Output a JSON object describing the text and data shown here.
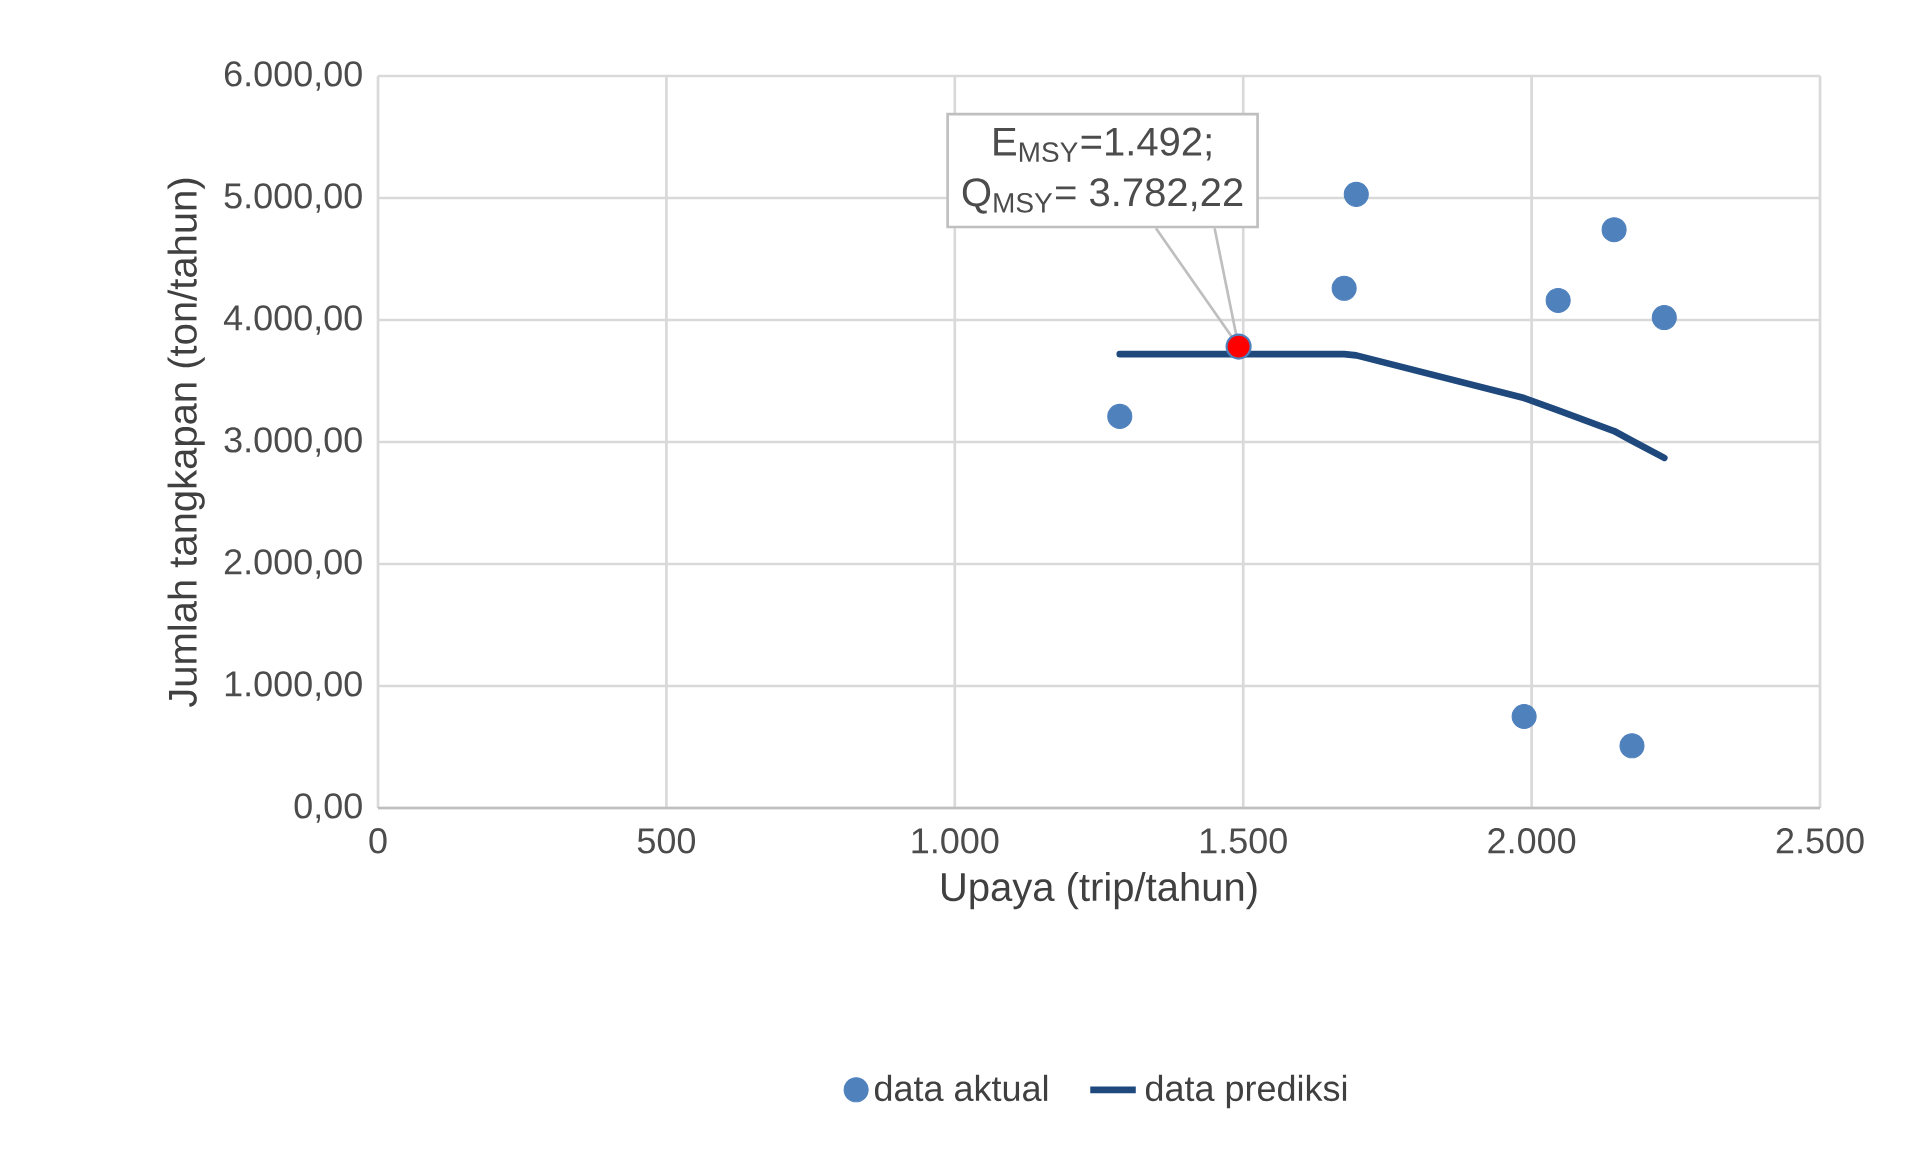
{
  "chart_data": {
    "type": "scatter",
    "xlabel": "Upaya (trip/tahun)",
    "ylabel": "Jumlah tangkapan (ton/tahun)",
    "xlim": [
      0,
      2500
    ],
    "ylim": [
      0,
      6000
    ],
    "xticks": [
      0,
      500,
      {
        "value": 1000,
        "label": "1.000"
      },
      {
        "value": 1500,
        "label": "1.500"
      },
      {
        "value": 2000,
        "label": "2.000"
      },
      {
        "value": 2500,
        "label": "2.500"
      }
    ],
    "yticks": [
      {
        "value": 0,
        "label": "0,00"
      },
      {
        "value": 1000,
        "label": "1.000,00"
      },
      {
        "value": 2000,
        "label": "2.000,00"
      },
      {
        "value": 3000,
        "label": "3.000,00"
      },
      {
        "value": 4000,
        "label": "4.000,00"
      },
      {
        "value": 5000,
        "label": "5.000,00"
      },
      {
        "value": 6000,
        "label": "6.000,00"
      }
    ],
    "grid": true,
    "legend": "bottom",
    "marker": "circle",
    "series": [
      {
        "name": "data aktual",
        "color": "#4f81bd",
        "x": [
          1286,
          1675,
          1696,
          2046,
          2143,
          2230,
          1987,
          2174
        ],
        "values": [
          3210,
          4260,
          5030,
          4160,
          4740,
          4020,
          750,
          510
        ]
      },
      {
        "name": "data prediksi",
        "type": "line",
        "marker": "none",
        "color": "#1f497d",
        "x": [
          1286,
          1492,
          1675,
          1696,
          1987,
          2046,
          2143,
          2174,
          2230
        ],
        "values": [
          3720,
          3720,
          3720,
          3710,
          3360,
          3260,
          3090,
          3010,
          2870
        ]
      },
      {
        "color": "#ff0000",
        "x": [
          1492
        ],
        "values": [
          3782.22
        ]
      }
    ],
    "annotations": [
      "E$_{MSY}$=1.492;",
      "Q$_{MSY}$= 3.782,22"
    ]
  }
}
